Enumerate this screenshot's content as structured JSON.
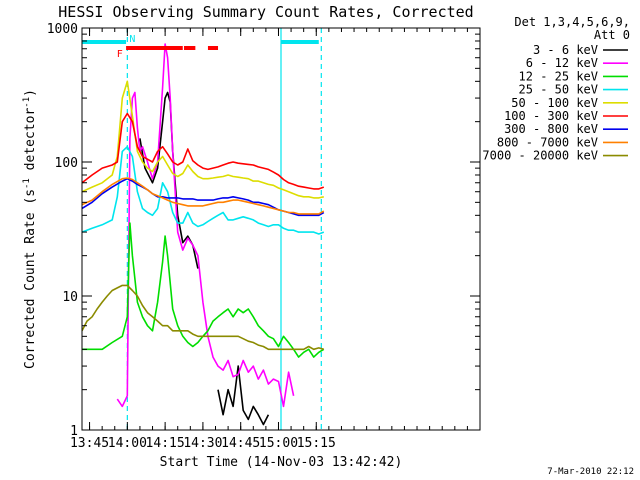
{
  "chart_data": {
    "type": "line",
    "title": "HESSI Observing Summary Count Rates, Corrected",
    "xlabel": "Start Time (14-Nov-03 13:42:42)",
    "ylabel": "Corrected Count Rate (s",
    "ylabel_sup1": "-1",
    "ylabel_mid": " detector",
    "ylabel_sup2": "-1",
    "ylabel_end": ")",
    "yscale": "log",
    "ylim": [
      1,
      1000
    ],
    "xlim_min": [
      822,
      980
    ],
    "x_ticks": [
      {
        "m": 825,
        "label": "13:45"
      },
      {
        "m": 840,
        "label": "14:00"
      },
      {
        "m": 855,
        "label": "14:15"
      },
      {
        "m": 870,
        "label": "14:30"
      },
      {
        "m": 885,
        "label": "14:45"
      },
      {
        "m": 900,
        "label": "15:00"
      },
      {
        "m": 915,
        "label": "15:15"
      }
    ],
    "y_ticks": [
      {
        "v": 1,
        "label": "1"
      },
      {
        "v": 10,
        "label": "10"
      },
      {
        "v": 100,
        "label": "100"
      },
      {
        "v": 1000,
        "label": "1000"
      }
    ],
    "legend_header": [
      "Det 1,3,4,5,6,9,",
      "Att 0"
    ],
    "legend_placement": "right",
    "series": [
      {
        "name": "3 - 6 keV",
        "color": "#000000",
        "x": [
          822,
          830,
          835,
          838,
          840,
          842,
          845,
          847,
          850,
          852,
          854,
          855,
          856,
          857,
          858,
          860,
          862,
          864,
          866,
          868,
          870,
          872,
          874,
          876,
          878,
          880,
          882,
          884,
          886,
          888,
          890,
          892,
          894,
          896
        ],
        "y": [
          null,
          null,
          null,
          null,
          null,
          null,
          150,
          90,
          70,
          90,
          200,
          300,
          330,
          280,
          120,
          40,
          25,
          28,
          24,
          16,
          null,
          null,
          null,
          2,
          1.3,
          2,
          1.5,
          3,
          1.4,
          1.2,
          1.5,
          1.3,
          1.1,
          1.3
        ]
      },
      {
        "name": "6 - 12 keV",
        "color": "#ff00ff",
        "x": [
          822,
          836,
          838,
          840,
          841,
          842,
          843,
          844,
          845,
          846,
          848,
          850,
          852,
          854,
          855,
          856,
          857,
          858,
          860,
          862,
          864,
          866,
          868,
          870,
          872,
          874,
          876,
          878,
          880,
          882,
          884,
          886,
          888,
          890,
          892,
          894,
          896,
          898,
          900,
          902,
          904,
          906
        ],
        "y": [
          null,
          1.7,
          1.5,
          1.8,
          150,
          300,
          330,
          180,
          120,
          130,
          100,
          75,
          100,
          360,
          760,
          600,
          300,
          120,
          30,
          22,
          27,
          24,
          20,
          9,
          5,
          3.5,
          3,
          2.8,
          3.3,
          2.5,
          2.6,
          3.3,
          2.7,
          3,
          2.4,
          2.8,
          2.2,
          2.4,
          2.3,
          1.5,
          2.7,
          1.8
        ]
      },
      {
        "name": "12 - 25 keV",
        "color": "#00dd00",
        "x": [
          822,
          826,
          830,
          834,
          838,
          840,
          841,
          842,
          844,
          846,
          848,
          850,
          852,
          854,
          855,
          856,
          858,
          860,
          862,
          864,
          866,
          868,
          870,
          872,
          874,
          876,
          878,
          880,
          882,
          884,
          886,
          888,
          890,
          892,
          894,
          896,
          898,
          900,
          902,
          904,
          906,
          908,
          910,
          912,
          914,
          916,
          918
        ],
        "y": [
          4,
          4,
          4,
          4.5,
          5,
          7,
          35,
          20,
          9,
          7,
          6,
          5.5,
          9,
          18,
          28,
          20,
          8,
          6,
          5,
          4.5,
          4.2,
          4.5,
          5,
          5.5,
          6.5,
          7,
          7.5,
          8,
          7,
          8,
          7.5,
          8,
          7,
          6,
          5.5,
          5,
          4.8,
          4.2,
          5,
          4.5,
          4,
          3.5,
          3.8,
          4,
          3.5,
          3.8,
          4
        ]
      },
      {
        "name": "25 - 50 keV",
        "color": "#00e5ee",
        "x": [
          822,
          826,
          830,
          834,
          836,
          838,
          840,
          842,
          844,
          846,
          848,
          850,
          852,
          854,
          856,
          858,
          860,
          862,
          864,
          866,
          868,
          870,
          872,
          874,
          876,
          878,
          880,
          882,
          884,
          886,
          888,
          890,
          892,
          894,
          896,
          898,
          900,
          902,
          904,
          906,
          908,
          910,
          912,
          914,
          916,
          918
        ],
        "y": [
          30,
          32,
          34,
          37,
          55,
          120,
          130,
          110,
          60,
          45,
          42,
          40,
          45,
          70,
          60,
          42,
          35,
          35,
          42,
          35,
          33,
          34,
          36,
          38,
          40,
          42,
          37,
          37,
          38,
          39,
          38,
          37,
          35,
          34,
          33,
          34,
          34,
          32,
          31,
          31,
          30,
          30,
          30,
          30,
          29,
          30
        ]
      },
      {
        "name": "50 - 100 keV",
        "color": "#dddd00",
        "x": [
          822,
          826,
          830,
          834,
          836,
          838,
          840,
          842,
          844,
          846,
          848,
          850,
          852,
          854,
          856,
          858,
          860,
          862,
          864,
          866,
          868,
          870,
          872,
          874,
          876,
          878,
          880,
          882,
          884,
          886,
          888,
          890,
          892,
          894,
          896,
          898,
          900,
          902,
          904,
          906,
          908,
          910,
          912,
          914,
          916,
          918
        ],
        "y": [
          60,
          65,
          70,
          80,
          110,
          300,
          400,
          220,
          120,
          100,
          90,
          85,
          100,
          110,
          95,
          82,
          78,
          82,
          95,
          85,
          78,
          75,
          75,
          76,
          77,
          78,
          80,
          78,
          77,
          76,
          75,
          72,
          72,
          70,
          68,
          67,
          64,
          62,
          60,
          58,
          56,
          55,
          55,
          54,
          54,
          55
        ]
      },
      {
        "name": "100 - 300 keV",
        "color": "#ff0000",
        "x": [
          822,
          826,
          830,
          834,
          836,
          838,
          840,
          842,
          844,
          846,
          848,
          850,
          852,
          854,
          856,
          858,
          860,
          862,
          864,
          866,
          868,
          870,
          872,
          874,
          876,
          878,
          880,
          882,
          884,
          886,
          888,
          890,
          892,
          894,
          896,
          898,
          900,
          902,
          904,
          906,
          908,
          910,
          912,
          914,
          916,
          918
        ],
        "y": [
          70,
          80,
          90,
          95,
          100,
          200,
          230,
          200,
          130,
          110,
          105,
          100,
          120,
          130,
          115,
          100,
          95,
          100,
          125,
          102,
          95,
          90,
          88,
          90,
          92,
          95,
          98,
          100,
          98,
          97,
          96,
          95,
          92,
          90,
          88,
          84,
          80,
          74,
          70,
          68,
          66,
          65,
          64,
          63,
          63,
          65
        ]
      },
      {
        "name": "300 - 800 keV",
        "color": "#0000ee",
        "x": [
          822,
          826,
          830,
          834,
          838,
          840,
          842,
          844,
          846,
          848,
          850,
          852,
          854,
          856,
          858,
          860,
          862,
          864,
          866,
          868,
          870,
          872,
          874,
          876,
          878,
          880,
          882,
          884,
          886,
          888,
          890,
          892,
          894,
          896,
          898,
          900,
          902,
          904,
          906,
          908,
          910,
          912,
          914,
          916,
          918
        ],
        "y": [
          45,
          50,
          58,
          65,
          72,
          75,
          72,
          68,
          65,
          62,
          58,
          55,
          55,
          54,
          54,
          54,
          53,
          53,
          53,
          52,
          52,
          52,
          52,
          53,
          54,
          54,
          55,
          54,
          53,
          52,
          50,
          50,
          49,
          48,
          46,
          44,
          43,
          42,
          41,
          40,
          40,
          40,
          40,
          40,
          42
        ]
      },
      {
        "name": "800 - 7000 keV",
        "color": "#ff8000",
        "x": [
          822,
          826,
          830,
          834,
          838,
          840,
          842,
          844,
          846,
          848,
          850,
          852,
          854,
          856,
          858,
          860,
          862,
          864,
          866,
          868,
          870,
          872,
          874,
          876,
          878,
          880,
          882,
          884,
          886,
          888,
          890,
          892,
          894,
          896,
          898,
          900,
          902,
          904,
          906,
          908,
          910,
          912,
          914,
          916,
          918
        ],
        "y": [
          48,
          52,
          60,
          68,
          75,
          76,
          74,
          70,
          66,
          62,
          58,
          56,
          54,
          52,
          50,
          49,
          48,
          47,
          47,
          47,
          47,
          48,
          49,
          50,
          50,
          51,
          52,
          52,
          51,
          50,
          49,
          48,
          47,
          46,
          45,
          44,
          43,
          42,
          42,
          41,
          41,
          41,
          41,
          41,
          43
        ]
      },
      {
        "name": "7000 - 20000 keV",
        "color": "#8b8b00",
        "x": [
          822,
          824,
          826,
          828,
          830,
          832,
          834,
          836,
          838,
          840,
          842,
          844,
          846,
          848,
          850,
          852,
          854,
          856,
          858,
          860,
          862,
          864,
          866,
          868,
          870,
          872,
          874,
          876,
          878,
          880,
          882,
          884,
          886,
          888,
          890,
          892,
          894,
          896,
          898,
          900,
          902,
          904,
          906,
          908,
          910,
          912,
          914,
          916,
          918
        ],
        "y": [
          5.5,
          6.5,
          7,
          8,
          9,
          10,
          11,
          11.5,
          12,
          12,
          11,
          10,
          8.5,
          7.5,
          7,
          6.5,
          6,
          6,
          5.5,
          5.5,
          5.5,
          5.5,
          5.2,
          5,
          5,
          5,
          5,
          5,
          5,
          5,
          5,
          5,
          4.8,
          4.6,
          4.5,
          4.3,
          4.2,
          4,
          4,
          4,
          4,
          4,
          4,
          4,
          4,
          4.2,
          4,
          4.1,
          4
        ]
      }
    ],
    "annotations": [
      {
        "label": "F",
        "m": 837,
        "color": "#ff0000"
      },
      {
        "label": "N",
        "m": 842,
        "color": "#00e5ee"
      }
    ],
    "top_bars": [
      {
        "color": "#00e5ee",
        "segments": [
          [
            822,
            839.5
          ],
          [
            901,
            916
          ]
        ]
      },
      {
        "color": "#ff0000",
        "segments": [
          [
            839.5,
            862
          ],
          [
            862.5,
            867
          ],
          [
            872,
            876
          ]
        ]
      }
    ],
    "vertical_lines": [
      {
        "m": 840,
        "color": "#00e5ee",
        "style": "dashed"
      },
      {
        "m": 901,
        "color": "#00e5ee",
        "style": "solid"
      },
      {
        "m": 917,
        "color": "#00e5ee",
        "style": "dashed"
      }
    ]
  },
  "footer_date": "7-Mar-2010 22:12"
}
